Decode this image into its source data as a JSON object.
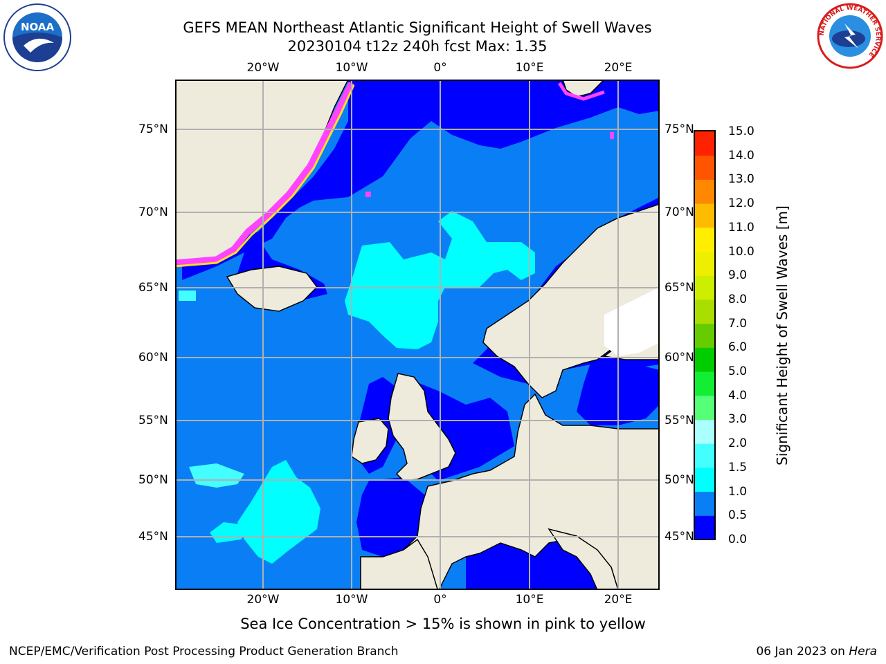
{
  "header": {
    "title_line1": "GEFS MEAN Northeast Atlantic Significant Height of Swell Waves",
    "title_line2": "20230104 t12z 240h fcst   Max: 1.35"
  },
  "logos": {
    "noaa": {
      "icon": "noaa-logo-icon",
      "text": "NOAA"
    },
    "nws": {
      "icon": "nws-logo-icon",
      "text": "NATIONAL WEATHER SERVICE"
    }
  },
  "map": {
    "longitude_labels": [
      "20°W",
      "10°W",
      "0°",
      "10°E",
      "20°E"
    ],
    "latitude_labels": [
      "75°N",
      "70°N",
      "65°N",
      "60°N",
      "55°N",
      "50°N",
      "45°N"
    ],
    "grid": true,
    "colors": {
      "ocean_base": "#0a7ff5",
      "low_swell": "#0000ff",
      "mid_swell": "#00ffff",
      "land": "#eeebdd",
      "ice_zero": "#ffffff",
      "sea_ice_pink": "#ff44ff",
      "sea_ice_yellow": "#ffdd22"
    }
  },
  "colorbar": {
    "label": "Significant Height of Swell Waves [m]",
    "ticks": [
      "15.0",
      "14.0",
      "13.0",
      "12.0",
      "11.0",
      "10.0",
      "9.0",
      "8.0",
      "7.0",
      "6.0",
      "5.0",
      "4.0",
      "3.0",
      "2.0",
      "1.5",
      "1.0",
      "0.5",
      "0.0"
    ],
    "colors_bottom_to_top": [
      "#0000ff",
      "#0a7ff5",
      "#00ffff",
      "#44ffff",
      "#aaffff",
      "#55ff77",
      "#11ee33",
      "#00cc00",
      "#66cc00",
      "#aadd00",
      "#ccee00",
      "#eeee00",
      "#ffee00",
      "#ffbb00",
      "#ff8800",
      "#ff5500",
      "#ff2200"
    ]
  },
  "footer": {
    "note": "Sea Ice Concentration > 15% is shown in pink to yellow",
    "left": "NCEP/EMC/Verification Post Processing Product Generation Branch",
    "right_date": "06 Jan 2023 on ",
    "right_host": "Hera"
  }
}
